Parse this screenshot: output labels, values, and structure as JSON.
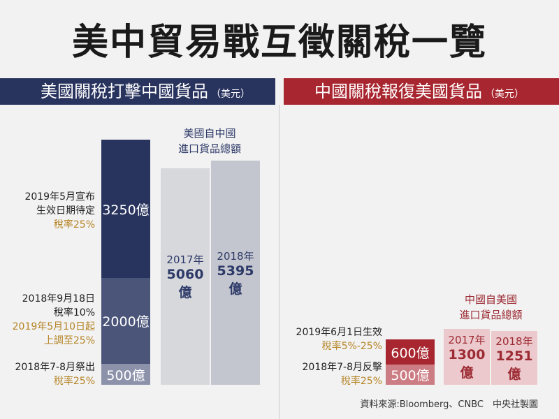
{
  "title": "美中貿易戰互徵關稅一覽",
  "left_header": {
    "text": "美國關稅打擊中國貨品",
    "unit": "（美元）"
  },
  "right_header": {
    "text": "中國關稅報復美國貨品",
    "unit": "（美元）"
  },
  "chart_data": [
    {
      "type": "bar",
      "title": "美國關稅打擊中國貨品",
      "unit": "美元",
      "stacked_tariffs": [
        {
          "value": "500億",
          "label": "2018年7-8月祭出",
          "rate": "稅率25%"
        },
        {
          "value": "2000億",
          "label": "2018年9月18日",
          "rate": "稅率10%",
          "note": "2019年5月10日起 上調至25%"
        },
        {
          "value": "3250億",
          "label": "2019年5月宣布 生效日期待定",
          "rate": "稅率25%"
        }
      ],
      "totals_caption": "美國自中國 進口貨品總額",
      "totals": [
        {
          "year": "2017年",
          "value": "5060億"
        },
        {
          "year": "2018年",
          "value": "5395億"
        }
      ]
    },
    {
      "type": "bar",
      "title": "中國關稅報復美國貨品",
      "unit": "美元",
      "stacked_tariffs": [
        {
          "value": "500億",
          "label": "2018年7-8月反擊",
          "rate": "稅率25%"
        },
        {
          "value": "600億",
          "label": "2019年6月1日生效",
          "rate": "稅率5%-25%"
        }
      ],
      "totals_caption": "中國自美國 進口貨品總額",
      "totals": [
        {
          "year": "2017年",
          "value": "1300億"
        },
        {
          "year": "2018年",
          "value": "1251億"
        }
      ]
    }
  ],
  "labels": {
    "us_3250_line1": "2019年5月宣布",
    "us_3250_line2": "生效日期待定",
    "us_3250_rate": "稅率25%",
    "us_2000_line1": "2018年9月18日",
    "us_2000_line2": "稅率10%",
    "us_2000_note1": "2019年5月10日起",
    "us_2000_note2": "上調至25%",
    "us_500_line1": "2018年7-8月祭出",
    "us_500_rate": "稅率25%",
    "us_total_cap1": "美國自中國",
    "us_total_cap2": "進口貨品總額",
    "cn_total_cap1": "中國自美國",
    "cn_total_cap2": "進口貨品總額",
    "cn_600_line1": "2019年6月1日生效",
    "cn_600_rate": "稅率5%-25%",
    "cn_500_line1": "2018年7-8月反擊",
    "cn_500_rate": "稅率25%"
  },
  "source": "資料來源:Bloomberg、CNBC　中央社製圖",
  "colors": {
    "us_header": "#28335e",
    "cn_header": "#a8262f",
    "us_3250": "#28335e",
    "us_2000": "#4b5479",
    "us_500": "#8d92ab",
    "us_totals_2017": "#d7d8dc",
    "us_totals_2018": "#c4c6cf",
    "cn_600": "#a8262f",
    "cn_500": "#cc7c83",
    "cn_totals": "#ecc9cc",
    "gold_text": "#b58426"
  }
}
